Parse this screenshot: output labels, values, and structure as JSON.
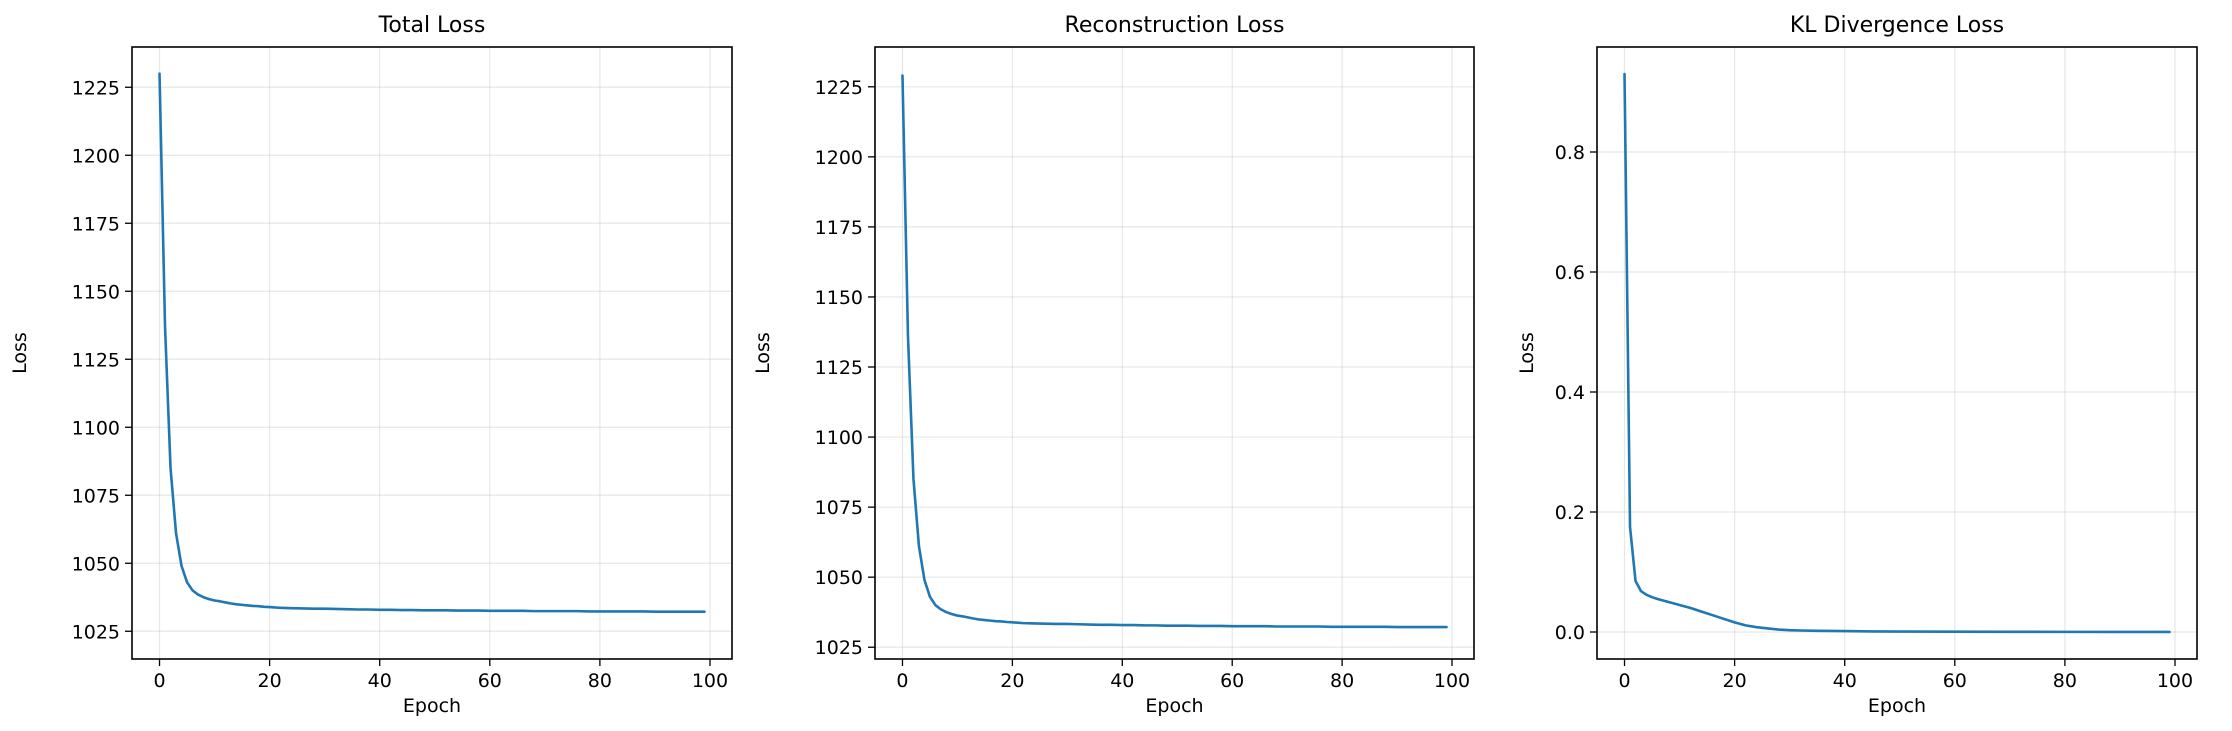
{
  "colors": {
    "series": "#1f77b4",
    "grid": "#b0b0b0",
    "axes": "#000000",
    "background": "#ffffff"
  },
  "chart_data": [
    {
      "type": "line",
      "title": "Total Loss",
      "xlabel": "Epoch",
      "ylabel": "Loss",
      "grid": true,
      "xlim": [
        -5,
        104
      ],
      "ylim": [
        1014.8,
        1239.8
      ],
      "xticks": [
        0,
        20,
        40,
        60,
        80,
        100
      ],
      "yticks": [
        1025,
        1050,
        1075,
        1100,
        1125,
        1150,
        1175,
        1200,
        1225
      ],
      "series": [
        {
          "x": [
            0,
            1,
            2,
            3,
            4,
            5,
            6,
            7,
            8,
            9,
            10,
            11,
            12,
            13,
            14,
            15,
            16,
            17,
            18,
            19,
            20,
            22,
            24,
            26,
            28,
            30,
            32,
            34,
            36,
            38,
            40,
            42,
            44,
            46,
            48,
            50,
            52,
            54,
            56,
            58,
            60,
            62,
            64,
            66,
            68,
            70,
            72,
            74,
            76,
            78,
            80,
            82,
            84,
            86,
            88,
            90,
            92,
            94,
            96,
            98,
            99
          ],
          "y": [
            1230,
            1137,
            1085,
            1061,
            1049,
            1043,
            1040,
            1038.5,
            1037.5,
            1036.8,
            1036.3,
            1036,
            1035.6,
            1035.2,
            1034.9,
            1034.7,
            1034.5,
            1034.3,
            1034.2,
            1034,
            1033.9,
            1033.6,
            1033.5,
            1033.4,
            1033.3,
            1033.3,
            1033.2,
            1033.1,
            1033,
            1033,
            1032.9,
            1032.9,
            1032.8,
            1032.8,
            1032.7,
            1032.7,
            1032.7,
            1032.6,
            1032.6,
            1032.6,
            1032.5,
            1032.5,
            1032.5,
            1032.5,
            1032.4,
            1032.4,
            1032.4,
            1032.4,
            1032.4,
            1032.3,
            1032.3,
            1032.3,
            1032.3,
            1032.3,
            1032.3,
            1032.2,
            1032.2,
            1032.2,
            1032.2,
            1032.2,
            1032.2
          ]
        }
      ]
    },
    {
      "type": "line",
      "title": "Reconstruction Loss",
      "xlabel": "Epoch",
      "ylabel": "Loss",
      "grid": true,
      "xlim": [
        -5,
        104
      ],
      "ylim": [
        1020.8,
        1239.2
      ],
      "xticks": [
        0,
        20,
        40,
        60,
        80,
        100
      ],
      "yticks": [
        1025,
        1050,
        1075,
        1100,
        1125,
        1150,
        1175,
        1200,
        1225
      ],
      "series": [
        {
          "x": [
            0,
            1,
            2,
            3,
            4,
            5,
            6,
            7,
            8,
            9,
            10,
            11,
            12,
            13,
            14,
            15,
            16,
            17,
            18,
            19,
            20,
            22,
            24,
            26,
            28,
            30,
            32,
            34,
            36,
            38,
            40,
            42,
            44,
            46,
            48,
            50,
            52,
            54,
            56,
            58,
            60,
            62,
            64,
            66,
            68,
            70,
            72,
            74,
            76,
            78,
            80,
            82,
            84,
            86,
            88,
            90,
            92,
            94,
            96,
            98,
            99
          ],
          "y": [
            1229,
            1136,
            1085,
            1061,
            1049,
            1043,
            1040,
            1038.5,
            1037.5,
            1036.8,
            1036.3,
            1036,
            1035.6,
            1035.2,
            1034.9,
            1034.7,
            1034.5,
            1034.3,
            1034.2,
            1034,
            1033.9,
            1033.6,
            1033.5,
            1033.4,
            1033.3,
            1033.3,
            1033.2,
            1033.1,
            1033,
            1033,
            1032.9,
            1032.9,
            1032.8,
            1032.8,
            1032.7,
            1032.7,
            1032.7,
            1032.6,
            1032.6,
            1032.6,
            1032.5,
            1032.5,
            1032.5,
            1032.5,
            1032.4,
            1032.4,
            1032.4,
            1032.4,
            1032.4,
            1032.3,
            1032.3,
            1032.3,
            1032.3,
            1032.3,
            1032.3,
            1032.2,
            1032.2,
            1032.2,
            1032.2,
            1032.2,
            1032.2
          ]
        }
      ]
    },
    {
      "type": "line",
      "title": "KL Divergence Loss",
      "xlabel": "Epoch",
      "ylabel": "Loss",
      "grid": true,
      "xlim": [
        -5,
        104
      ],
      "ylim": [
        -0.045,
        0.975
      ],
      "xticks": [
        0,
        20,
        40,
        60,
        80,
        100
      ],
      "yticks": [
        0.0,
        0.2,
        0.4,
        0.6,
        0.8
      ],
      "ytick_labels": [
        "0.0",
        "0.2",
        "0.4",
        "0.6",
        "0.8"
      ],
      "series": [
        {
          "x": [
            0,
            1,
            2,
            3,
            4,
            5,
            6,
            8,
            10,
            12,
            14,
            16,
            18,
            20,
            22,
            24,
            26,
            28,
            30,
            32,
            35,
            40,
            45,
            50,
            60,
            70,
            80,
            90,
            99
          ],
          "y": [
            0.93,
            0.175,
            0.085,
            0.068,
            0.062,
            0.058,
            0.055,
            0.05,
            0.045,
            0.04,
            0.034,
            0.028,
            0.022,
            0.016,
            0.011,
            0.008,
            0.006,
            0.004,
            0.003,
            0.0025,
            0.002,
            0.0015,
            0.001,
            0.0008,
            0.0005,
            0.0003,
            0.0002,
            0.0001,
            0.0001
          ]
        }
      ]
    }
  ]
}
